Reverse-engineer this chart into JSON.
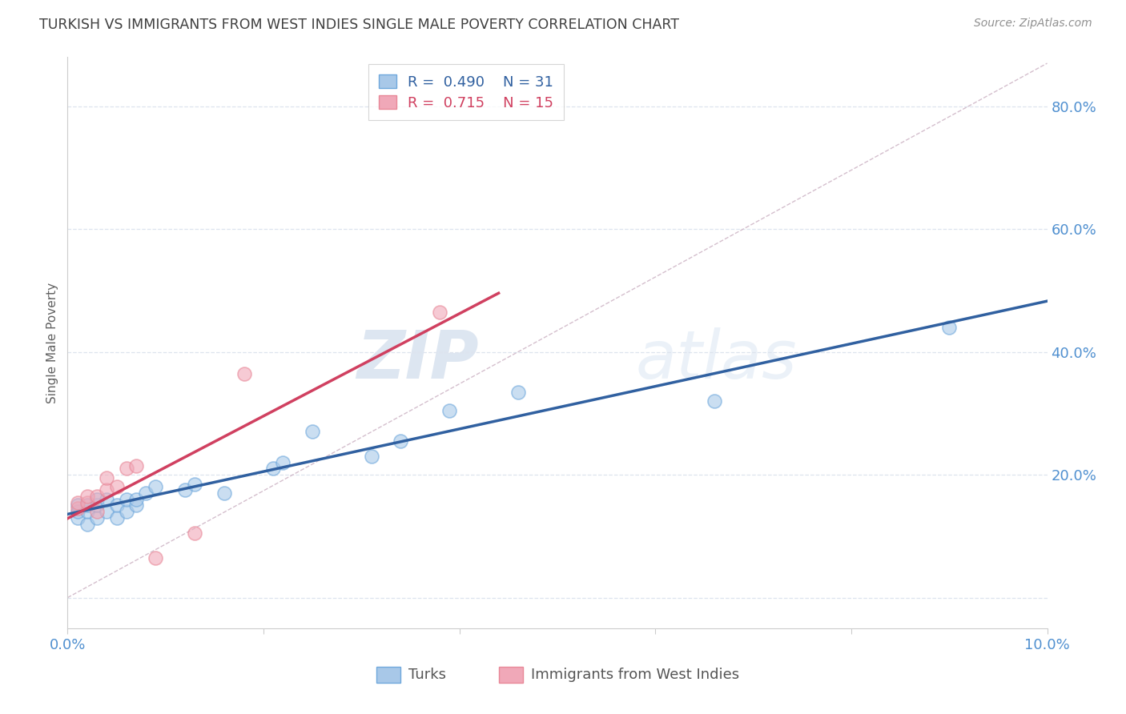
{
  "title": "TURKISH VS IMMIGRANTS FROM WEST INDIES SINGLE MALE POVERTY CORRELATION CHART",
  "source": "Source: ZipAtlas.com",
  "ylabel": "Single Male Poverty",
  "xlim": [
    0.0,
    0.1
  ],
  "ylim": [
    -0.05,
    0.88
  ],
  "xticks": [
    0.0,
    0.02,
    0.04,
    0.06,
    0.08,
    0.1
  ],
  "yticks": [
    0.0,
    0.2,
    0.4,
    0.6,
    0.8
  ],
  "series1_label": "Turks",
  "series2_label": "Immigrants from West Indies",
  "series1_R": "0.490",
  "series1_N": "31",
  "series2_R": "0.715",
  "series2_N": "15",
  "series1_color": "#a8c8e8",
  "series2_color": "#f0a8b8",
  "series1_edge_color": "#6fa8dc",
  "series2_edge_color": "#e88898",
  "series1_line_color": "#3060a0",
  "series2_line_color": "#d04060",
  "ref_line_color": "#d0b8c8",
  "background_color": "#ffffff",
  "grid_color": "#dde4ee",
  "title_color": "#404040",
  "axis_tick_color": "#5090d0",
  "ylabel_color": "#606060",
  "source_color": "#909090",
  "series1_x": [
    0.001,
    0.001,
    0.001,
    0.002,
    0.002,
    0.002,
    0.003,
    0.003,
    0.003,
    0.004,
    0.004,
    0.005,
    0.005,
    0.006,
    0.006,
    0.007,
    0.007,
    0.008,
    0.009,
    0.012,
    0.013,
    0.016,
    0.021,
    0.022,
    0.025,
    0.031,
    0.034,
    0.039,
    0.046,
    0.066,
    0.09
  ],
  "series1_y": [
    0.13,
    0.14,
    0.15,
    0.12,
    0.14,
    0.15,
    0.13,
    0.15,
    0.16,
    0.14,
    0.16,
    0.13,
    0.15,
    0.14,
    0.16,
    0.15,
    0.16,
    0.17,
    0.18,
    0.175,
    0.185,
    0.17,
    0.21,
    0.22,
    0.27,
    0.23,
    0.255,
    0.305,
    0.335,
    0.32,
    0.44
  ],
  "series2_x": [
    0.001,
    0.001,
    0.002,
    0.002,
    0.003,
    0.003,
    0.004,
    0.004,
    0.005,
    0.006,
    0.007,
    0.009,
    0.013,
    0.018,
    0.038
  ],
  "series2_y": [
    0.145,
    0.155,
    0.155,
    0.165,
    0.14,
    0.165,
    0.175,
    0.195,
    0.18,
    0.21,
    0.215,
    0.065,
    0.105,
    0.365,
    0.465
  ],
  "watermark_zip": "ZIP",
  "watermark_atlas": "atlas",
  "figsize": [
    14.06,
    8.92
  ],
  "dpi": 100
}
